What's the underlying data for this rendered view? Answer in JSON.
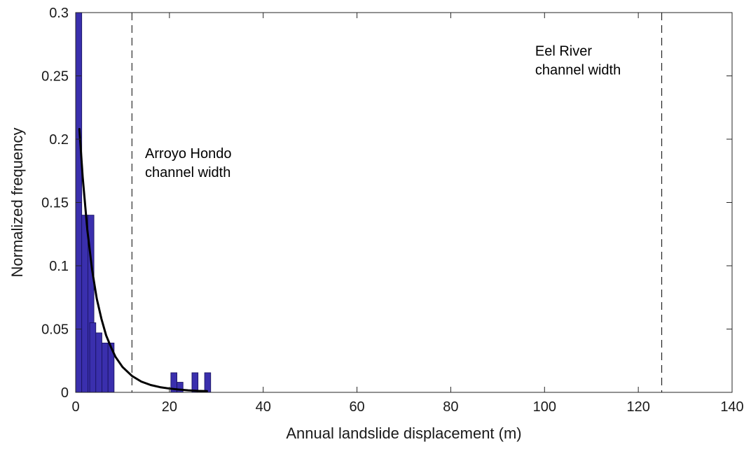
{
  "chart_data": {
    "type": "bar",
    "title": "",
    "xlabel": "Annual landslide displacement (m)",
    "ylabel": "Normalized  frequency",
    "xlim": [
      0,
      140
    ],
    "ylim": [
      0,
      0.3
    ],
    "xticks": [
      0,
      20,
      40,
      60,
      80,
      100,
      120,
      140
    ],
    "yticks": [
      0,
      0.05,
      0.1,
      0.15,
      0.2,
      0.25,
      0.3
    ],
    "xtick_labels": [
      "0",
      "20",
      "40",
      "60",
      "80",
      "100",
      "120",
      "140"
    ],
    "ytick_labels": [
      "0",
      "0.05",
      "0.1",
      "0.15",
      "0.2",
      "0.25",
      "0.3"
    ],
    "grid": false,
    "legend": "none",
    "colors": {
      "bars": "#3a2fad",
      "bar_edge": "#15105a",
      "fit": "#000000",
      "reference": "#000000"
    },
    "histogram": {
      "bin_width": 1.3,
      "bins": [
        {
          "start": 0.0,
          "value": 0.3
        },
        {
          "start": 1.3,
          "value": 0.14
        },
        {
          "start": 2.6,
          "value": 0.14
        },
        {
          "start": 3.0,
          "value": 0.055
        },
        {
          "start": 4.3,
          "value": 0.047
        },
        {
          "start": 5.6,
          "value": 0.039
        },
        {
          "start": 6.9,
          "value": 0.039
        },
        {
          "start": 20.3,
          "value": 0.0155
        },
        {
          "start": 21.6,
          "value": 0.008
        },
        {
          "start": 24.8,
          "value": 0.0155
        },
        {
          "start": 27.5,
          "value": 0.0155
        }
      ]
    },
    "fit_curve": {
      "name": "exponential fit",
      "x": [
        0.8,
        1.5,
        2.5,
        3.5,
        4.5,
        5.5,
        6.5,
        7.5,
        8.5,
        10,
        12,
        14,
        16,
        18,
        20,
        22,
        24,
        26,
        28
      ],
      "y": [
        0.208,
        0.17,
        0.128,
        0.097,
        0.074,
        0.058,
        0.045,
        0.036,
        0.028,
        0.02,
        0.013,
        0.0085,
        0.0058,
        0.0041,
        0.003,
        0.0022,
        0.0016,
        0.0012,
        0.001
      ]
    },
    "reference_lines": [
      {
        "x": 12,
        "label_lines": [
          "Arroyo Hondo",
          "channel width"
        ]
      },
      {
        "x": 125,
        "label_lines": [
          "Eel River",
          "channel width"
        ]
      }
    ],
    "annotations": [
      {
        "lines": [
          "Arroyo Hondo",
          "channel width"
        ],
        "x": 14.8,
        "y": 0.185,
        "align": "start"
      },
      {
        "lines": [
          "Eel River",
          "channel width"
        ],
        "x": 98,
        "y": 0.266,
        "align": "start"
      }
    ]
  }
}
